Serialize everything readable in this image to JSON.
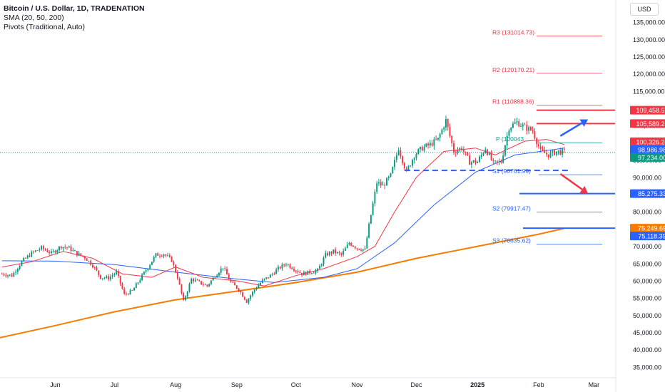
{
  "legend": {
    "symbol": "Bitcoin / U.S. Dollar, 1D, TRADENATION",
    "sma": "SMA (20, 50, 200)",
    "pivots": "Pivots (Traditional, Auto)"
  },
  "currency_button": "USD",
  "colors": {
    "up": "#089981",
    "down": "#f23645",
    "sma20": "#f23645",
    "sma50": "#2962ff",
    "sma200": "#f57c00",
    "resistance": "#f23645",
    "support": "#2962ff",
    "pivot": "#089981"
  },
  "chart_data": {
    "type": "line",
    "title": "Bitcoin / U.S. Dollar, 1D, TRADENATION",
    "ylabel": "USD",
    "ylim": [
      32500,
      137500
    ],
    "yticks": [
      35000,
      40000,
      45000,
      50000,
      55000,
      60000,
      65000,
      70000,
      75000,
      80000,
      85000,
      90000,
      95000,
      100000,
      105000,
      110000,
      115000,
      120000,
      125000,
      130000,
      135000
    ],
    "ytick_labels": [
      "35,000.00",
      "40,000.00",
      "45,000.00",
      "50,000.00",
      "55,000.00",
      "60,000.00",
      "65,000.00",
      "70,000.00",
      "75,000.00",
      "80,000.00",
      "85,000.00",
      "90,000.00",
      "95,000.00",
      "100,000.00",
      "105,000.00",
      "110,000.00",
      "115,000.00",
      "120,000.00",
      "125,000.00",
      "130,000.00",
      "135,000.00"
    ],
    "xlabels": [
      {
        "label": "Jun",
        "date": "2024-06-01"
      },
      {
        "label": "Jul",
        "date": "2024-07-01"
      },
      {
        "label": "Aug",
        "date": "2024-08-01"
      },
      {
        "label": "Sep",
        "date": "2024-09-01"
      },
      {
        "label": "Oct",
        "date": "2024-10-01"
      },
      {
        "label": "Nov",
        "date": "2024-11-01"
      },
      {
        "label": "Dec",
        "date": "2024-12-01"
      },
      {
        "label": "2025",
        "date": "2025-01-01"
      },
      {
        "label": "Feb",
        "date": "2025-02-01"
      },
      {
        "label": "Mar",
        "date": "2025-03-01"
      }
    ],
    "x_range": [
      "2024-05-04",
      "2025-03-11"
    ],
    "closes": [
      [
        "2024-05-05",
        62000
      ],
      [
        "2024-05-10",
        61500
      ],
      [
        "2024-05-15",
        65500
      ],
      [
        "2024-05-20",
        68000
      ],
      [
        "2024-05-25",
        69500
      ],
      [
        "2024-05-30",
        68000
      ],
      [
        "2024-06-04",
        70000
      ],
      [
        "2024-06-08",
        69500
      ],
      [
        "2024-06-12",
        67800
      ],
      [
        "2024-06-16",
        66800
      ],
      [
        "2024-06-20",
        64500
      ],
      [
        "2024-06-24",
        61000
      ],
      [
        "2024-06-28",
        60800
      ],
      [
        "2024-07-02",
        62500
      ],
      [
        "2024-07-06",
        56000
      ],
      [
        "2024-07-10",
        57000
      ],
      [
        "2024-07-14",
        60500
      ],
      [
        "2024-07-18",
        64000
      ],
      [
        "2024-07-22",
        67500
      ],
      [
        "2024-07-26",
        67800
      ],
      [
        "2024-07-30",
        66000
      ],
      [
        "2024-08-02",
        61000
      ],
      [
        "2024-08-05",
        54000
      ],
      [
        "2024-08-09",
        60500
      ],
      [
        "2024-08-13",
        59500
      ],
      [
        "2024-08-17",
        58500
      ],
      [
        "2024-08-21",
        61500
      ],
      [
        "2024-08-25",
        64000
      ],
      [
        "2024-08-29",
        59500
      ],
      [
        "2024-09-02",
        57500
      ],
      [
        "2024-09-06",
        54000
      ],
      [
        "2024-09-10",
        57500
      ],
      [
        "2024-09-14",
        60000
      ],
      [
        "2024-09-18",
        61500
      ],
      [
        "2024-09-22",
        63500
      ],
      [
        "2024-09-26",
        65000
      ],
      [
        "2024-09-30",
        63500
      ],
      [
        "2024-10-04",
        62000
      ],
      [
        "2024-10-08",
        62500
      ],
      [
        "2024-10-12",
        63000
      ],
      [
        "2024-10-16",
        67500
      ],
      [
        "2024-10-20",
        68500
      ],
      [
        "2024-10-24",
        67500
      ],
      [
        "2024-10-28",
        71000
      ],
      [
        "2024-11-01",
        69500
      ],
      [
        "2024-11-05",
        69000
      ],
      [
        "2024-11-07",
        76000
      ],
      [
        "2024-11-11",
        88500
      ],
      [
        "2024-11-14",
        87500
      ],
      [
        "2024-11-18",
        90500
      ],
      [
        "2024-11-22",
        98500
      ],
      [
        "2024-11-26",
        91500
      ],
      [
        "2024-11-30",
        96500
      ],
      [
        "2024-12-04",
        98500
      ],
      [
        "2024-12-08",
        99500
      ],
      [
        "2024-12-12",
        101000
      ],
      [
        "2024-12-16",
        106500
      ],
      [
        "2024-12-20",
        97500
      ],
      [
        "2024-12-24",
        98500
      ],
      [
        "2024-12-28",
        94500
      ],
      [
        "2025-01-01",
        94500
      ],
      [
        "2025-01-05",
        98500
      ],
      [
        "2025-01-09",
        94000
      ],
      [
        "2025-01-13",
        94500
      ],
      [
        "2025-01-17",
        104500
      ],
      [
        "2025-01-21",
        106000
      ],
      [
        "2025-01-25",
        104500
      ],
      [
        "2025-01-29",
        103500
      ],
      [
        "2025-02-02",
        97500
      ],
      [
        "2025-02-06",
        96500
      ],
      [
        "2025-02-10",
        97500
      ],
      [
        "2025-02-14",
        97300
      ]
    ],
    "sma20": [
      [
        "2024-05-05",
        64000
      ],
      [
        "2024-05-20",
        65500
      ],
      [
        "2024-06-05",
        68500
      ],
      [
        "2024-06-20",
        66500
      ],
      [
        "2024-07-05",
        62000
      ],
      [
        "2024-07-20",
        61000
      ],
      [
        "2024-08-01",
        64000
      ],
      [
        "2024-08-15",
        61000
      ],
      [
        "2024-09-01",
        60000
      ],
      [
        "2024-09-15",
        58500
      ],
      [
        "2024-10-01",
        61500
      ],
      [
        "2024-10-15",
        63500
      ],
      [
        "2024-11-01",
        67000
      ],
      [
        "2024-11-10",
        70000
      ],
      [
        "2024-11-20",
        80000
      ],
      [
        "2024-12-01",
        90000
      ],
      [
        "2024-12-15",
        97500
      ],
      [
        "2024-12-31",
        98500
      ],
      [
        "2025-01-10",
        96500
      ],
      [
        "2025-01-25",
        100500
      ],
      [
        "2025-02-05",
        101000
      ],
      [
        "2025-02-14",
        99500
      ]
    ],
    "sma50": [
      [
        "2024-05-05",
        65800
      ],
      [
        "2024-06-01",
        65700
      ],
      [
        "2024-07-01",
        64700
      ],
      [
        "2024-08-01",
        62500
      ],
      [
        "2024-09-01",
        60500
      ],
      [
        "2024-09-20",
        59500
      ],
      [
        "2024-10-15",
        61000
      ],
      [
        "2024-11-01",
        63500
      ],
      [
        "2024-11-20",
        71000
      ],
      [
        "2024-12-10",
        82000
      ],
      [
        "2024-12-31",
        91500
      ],
      [
        "2025-01-20",
        96500
      ],
      [
        "2025-02-14",
        98500
      ]
    ],
    "sma200": [
      [
        "2024-05-04",
        43500
      ],
      [
        "2024-06-01",
        47000
      ],
      [
        "2024-07-01",
        51000
      ],
      [
        "2024-08-01",
        54500
      ],
      [
        "2024-09-01",
        57000
      ],
      [
        "2024-10-01",
        59500
      ],
      [
        "2024-11-01",
        62500
      ],
      [
        "2024-12-01",
        66500
      ],
      [
        "2025-01-01",
        70000
      ],
      [
        "2025-02-01",
        73500
      ],
      [
        "2025-02-14",
        75200
      ]
    ],
    "pivots": [
      {
        "label": "R3 (131014.73)",
        "value": 131014.73,
        "color": "#f23645"
      },
      {
        "label": "R2 (120170.21)",
        "value": 120170.21,
        "color": "#f23645"
      },
      {
        "label": "R1 (110888.36)",
        "value": 110888.36,
        "color": "#f23645"
      },
      {
        "label": "P (100043",
        "value": 100043,
        "color": "#089981"
      },
      {
        "label": "S1 (90761.99)",
        "value": 90761.99,
        "color": "#2962ff"
      },
      {
        "label": "S2 (79917.47)",
        "value": 79917.47,
        "color": "#2962ff"
      },
      {
        "label": "S3 (70635.62)",
        "value": 70635.62,
        "color": "#2962ff"
      }
    ],
    "levels": [
      {
        "name": "resistance-109458",
        "value": 109458.53,
        "label": "109,458.53",
        "color": "#f23645"
      },
      {
        "name": "resistance-105589",
        "value": 105589.21,
        "label": "105,589.21",
        "color": "#f23645"
      },
      {
        "name": "support-85275",
        "value": 85275.33,
        "label": "85,275.33",
        "color": "#2962ff"
      },
      {
        "name": "support-75249",
        "value": 75249.69,
        "label": "75,249.69",
        "color": "#f57c00"
      }
    ],
    "neckline": {
      "value": 92000,
      "from": "2024-11-25",
      "to": "2025-02-17"
    },
    "price_labels": [
      {
        "label": "109,458.53",
        "value": 109458.53,
        "color": "#f23645"
      },
      {
        "label": "105,589.21",
        "value": 105589.21,
        "color": "#f23645"
      },
      {
        "label": "100,326.24",
        "value": 100326.24,
        "color": "#f23645"
      },
      {
        "label": "98,986.98",
        "value": 98986.98,
        "color": "#2962ff"
      },
      {
        "label": "97,234.00",
        "value": 97234.0,
        "color": "#089981"
      },
      {
        "label": "85,275.33",
        "value": 85275.33,
        "color": "#2962ff"
      },
      {
        "label": "75,249.69",
        "value": 75249.69,
        "color": "#f57c00"
      },
      {
        "label": "75,118.39",
        "value": 75118.39,
        "color": "#2962ff"
      }
    ],
    "current_price": 97234.0,
    "arrows": [
      {
        "name": "bullish-arrow",
        "from": [
          "2025-02-12",
          102000
        ],
        "to": [
          "2025-02-26",
          106800
        ],
        "color": "#2962ff"
      },
      {
        "name": "bearish-arrow",
        "from": [
          "2025-02-12",
          91000
        ],
        "to": [
          "2025-02-26",
          85300
        ],
        "color": "#f23645"
      }
    ]
  }
}
